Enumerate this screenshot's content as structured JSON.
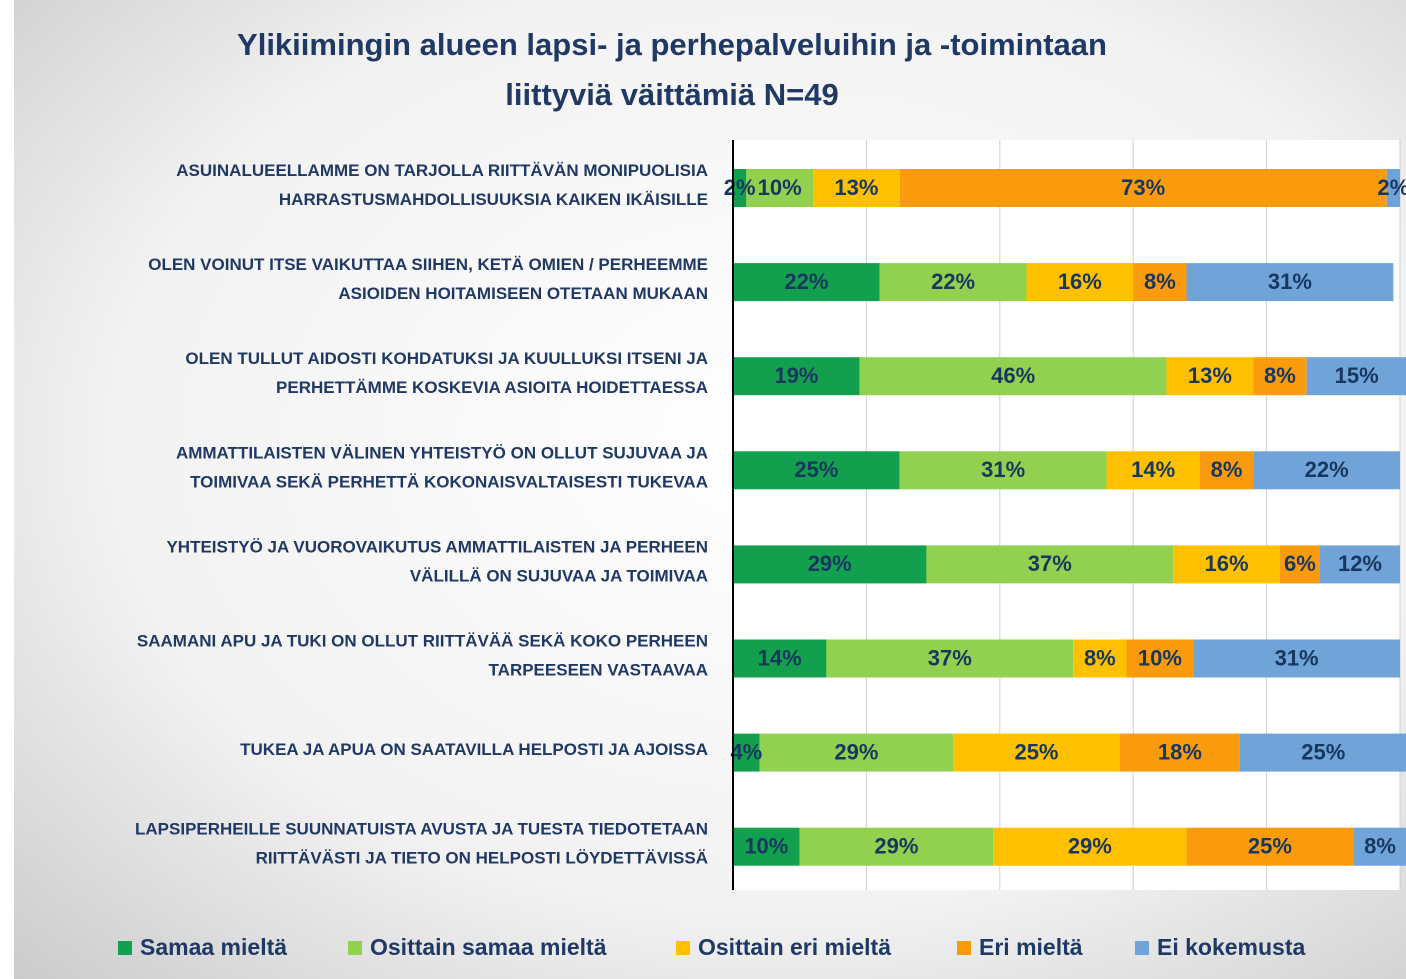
{
  "chart_data": {
    "type": "stacked_barh",
    "title": [
      "Ylikiimingin alueen lapsi- ja perhepalveluihin ja -toimintaan",
      "liittyviä väittämiä N=49"
    ],
    "categories": [
      [
        "ASUINALUEELLAMME ON TARJOLLA RIITTÄVÄN MONIPUOLISIA",
        "HARRASTUSMAHDOLLISUUKSIA KAIKEN IKÄISILLE"
      ],
      [
        "OLEN VOINUT ITSE VAIKUTTAA SIIHEN, KETÄ OMIEN / PERHEEMME",
        "ASIOIDEN HOITAMISEEN OTETAAN MUKAAN"
      ],
      [
        "OLEN TULLUT AIDOSTI KOHDATUKSI JA KUULLUKSI ITSENI JA",
        "PERHETTÄMME KOSKEVIA ASIOITA HOIDETTAESSA"
      ],
      [
        "AMMATTILAISTEN VÄLINEN YHTEISTYÖ ON OLLUT SUJUVAA JA",
        "TOIMIVAA SEKÄ PERHETTÄ KOKONAISVALTAISESTI TUKEVAA"
      ],
      [
        "YHTEISTYÖ JA VUOROVAIKUTUS AMMATTILAISTEN JA PERHEEN",
        "VÄLILLÄ ON SUJUVAA JA TOIMIVAA"
      ],
      [
        "SAAMANI APU JA TUKI ON OLLUT RIITTÄVÄÄ SEKÄ KOKO PERHEEN",
        "TARPEESEEN VASTAAVAA"
      ],
      [
        "TUKEA JA APUA ON SAATAVILLA HELPOSTI JA AJOISSA"
      ],
      [
        "LAPSIPERHEILLE SUUNNATUISTA AVUSTA JA TUESTA TIEDOTETAAN",
        "RIITTÄVÄSTI JA TIETO ON HELPOSTI LÖYDETTÄVISSÄ"
      ]
    ],
    "series": [
      {
        "name": "Samaa mieltä",
        "color": "#13a04e",
        "values": [
          2,
          22,
          19,
          25,
          29,
          14,
          4,
          10
        ],
        "value_labels": [
          "2%",
          "22%",
          "19%",
          "25%",
          "29%",
          "14%",
          "4%",
          "10%"
        ]
      },
      {
        "name": "Osittain samaa mieltä",
        "color": "#92d050",
        "values": [
          10,
          22,
          46,
          31,
          37,
          37,
          29,
          29
        ],
        "value_labels": [
          "10%",
          "22%",
          "46%",
          "31%",
          "37%",
          "37%",
          "29%",
          "29%"
        ]
      },
      {
        "name": "Osittain eri mieltä",
        "color": "#ffc000",
        "values": [
          13,
          16,
          13,
          14,
          16,
          8,
          25,
          29
        ],
        "value_labels": [
          "13%",
          "16%",
          "13%",
          "14%",
          "16%",
          "8%",
          "25%",
          "29%"
        ]
      },
      {
        "name": "Eri mieltä",
        "color": "#f99b0c",
        "values": [
          73,
          8,
          8,
          8,
          6,
          10,
          18,
          25
        ],
        "value_labels": [
          "73%",
          "8%",
          "8%",
          "8%",
          "6%",
          "10%",
          "18%",
          "25%"
        ]
      },
      {
        "name": "Ei kokemusta",
        "color": "#70a3d8",
        "values": [
          2,
          31,
          15,
          22,
          12,
          31,
          25,
          8
        ],
        "value_labels": [
          "2%",
          "31%",
          "15%",
          "22%",
          "12%",
          "31%",
          "25%",
          "8%"
        ]
      }
    ],
    "xlim": [
      0,
      100
    ],
    "xticks": [
      0,
      20,
      40,
      60,
      80,
      100
    ],
    "grid": true,
    "legend": "bottom"
  }
}
